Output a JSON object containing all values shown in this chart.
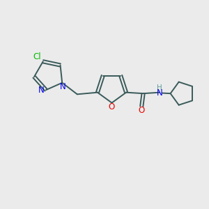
{
  "background_color": "#EBEBEB",
  "bond_color": "#3A5A5A",
  "nitrogen_color": "#0000EE",
  "oxygen_color": "#EE0000",
  "chlorine_color": "#00BB00",
  "nh_color": "#5F9EA0",
  "figsize": [
    3.0,
    3.0
  ],
  "dpi": 100,
  "xlim": [
    0,
    10
  ],
  "ylim": [
    0,
    10
  ]
}
